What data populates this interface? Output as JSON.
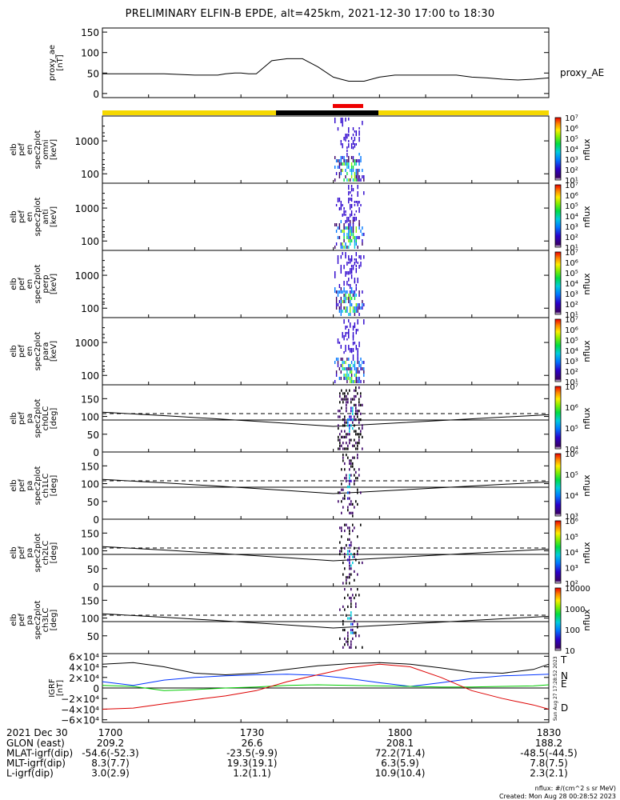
{
  "title": "PRELIMINARY ELFIN-B EPDE, alt=425km, 2021-12-30 17:00 to 18:30",
  "colors": {
    "yellow": "#f5d800",
    "black": "#000000",
    "red": "#ee0000",
    "gsm_T": "#000000",
    "gsm_N": "#0033ff",
    "gsm_E": "#00cc00",
    "gsm_D": "#dd0000"
  },
  "chart_data": [
    {
      "type": "line",
      "panel": "proxy_ae",
      "ylabel": [
        "proxy_ae",
        "[nT]"
      ],
      "legend": "proxy_AE",
      "yticks": [
        "150",
        "100",
        "50",
        "0"
      ],
      "ylim": [
        -10,
        160
      ],
      "x_minutes": [
        0,
        20,
        40,
        60,
        75,
        80,
        86,
        90,
        95,
        100,
        110,
        120,
        130,
        140,
        150,
        155,
        160,
        170,
        180,
        190,
        200,
        210,
        220,
        230,
        240,
        250,
        260,
        270,
        280,
        290
      ],
      "values": [
        48,
        48,
        48,
        45,
        45,
        48,
        50,
        50,
        48,
        48,
        80,
        85,
        85,
        65,
        40,
        35,
        30,
        30,
        40,
        45,
        45,
        45,
        45,
        45,
        40,
        38,
        35,
        33,
        35,
        38
      ]
    },
    {
      "type": "heatmap",
      "panel": "spec_omni",
      "ylabel": [
        "elb",
        "pef",
        "en",
        "spec2plot",
        "omni",
        "[keV]"
      ],
      "yticks": [
        "1000",
        "100"
      ],
      "colorbar_label": "nflux",
      "colorbar_ticks": [
        "10⁷",
        "10⁶",
        "10⁵",
        "10⁴",
        "10³",
        "10²",
        "10¹"
      ]
    },
    {
      "type": "heatmap",
      "panel": "spec_anti",
      "ylabel": [
        "elb",
        "pef",
        "en",
        "spec2plot",
        "anti",
        "[keV]"
      ],
      "yticks": [
        "1000",
        "100"
      ],
      "colorbar_label": "nflux",
      "colorbar_ticks": [
        "10⁷",
        "10⁶",
        "10⁵",
        "10⁴",
        "10³",
        "10²",
        "10¹"
      ]
    },
    {
      "type": "heatmap",
      "panel": "spec_perp",
      "ylabel": [
        "elb",
        "pef",
        "en",
        "spec2plot",
        "perp",
        "[keV]"
      ],
      "yticks": [
        "1000",
        "100"
      ],
      "colorbar_label": "nflux",
      "colorbar_ticks": [
        "10⁷",
        "10⁶",
        "10⁵",
        "10⁴",
        "10³",
        "10²",
        "10¹"
      ]
    },
    {
      "type": "heatmap",
      "panel": "spec_para",
      "ylabel": [
        "elb",
        "pef",
        "en",
        "spec2plot",
        "para",
        "[keV]"
      ],
      "yticks": [
        "1000",
        "100"
      ],
      "colorbar_label": "nflux",
      "colorbar_ticks": [
        "10⁷",
        "10⁶",
        "10⁵",
        "10⁴",
        "10³",
        "10²",
        "10¹"
      ]
    },
    {
      "type": "heatmap",
      "panel": "pa_ch0",
      "ylabel": [
        "elb",
        "pef",
        "pa",
        "spec2plot",
        "ch0LC",
        "[deg]"
      ],
      "yticks": [
        "150",
        "100",
        "50",
        "0"
      ],
      "colorbar_label": "nflux",
      "colorbar_ticks": [
        "10⁷",
        "10⁶",
        "10⁵",
        "10⁴"
      ]
    },
    {
      "type": "heatmap",
      "panel": "pa_ch1",
      "ylabel": [
        "elb",
        "pef",
        "pa",
        "spec2plot",
        "ch1LC",
        "[deg]"
      ],
      "yticks": [
        "150",
        "100",
        "50",
        "0"
      ],
      "colorbar_label": "nflux",
      "colorbar_ticks": [
        "10⁶",
        "10⁵",
        "10⁴",
        "10³"
      ]
    },
    {
      "type": "heatmap",
      "panel": "pa_ch2",
      "ylabel": [
        "elb",
        "pef",
        "pa",
        "spec2plot",
        "ch2LC",
        "[deg]"
      ],
      "yticks": [
        "150",
        "100",
        "50",
        "0"
      ],
      "colorbar_label": "nflux",
      "colorbar_ticks": [
        "10⁶",
        "10⁵",
        "10⁴",
        "10³",
        "10²"
      ]
    },
    {
      "type": "heatmap",
      "panel": "pa_ch3",
      "ylabel": [
        "elb",
        "pef",
        "pa",
        "spec2plot",
        "ch3LC",
        "[deg]"
      ],
      "yticks": [
        "150",
        "100",
        "50"
      ],
      "colorbar_label": "nflux",
      "colorbar_ticks": [
        "10000",
        "1000",
        "100",
        "10"
      ]
    },
    {
      "type": "line",
      "panel": "igrf",
      "ylabel": [
        "IGRF",
        "[nT]"
      ],
      "yticks": [
        "6×10⁴",
        "4×10⁴",
        "2×10⁴",
        "0",
        "−2×10⁴",
        "−4×10⁴",
        "−6×10⁴"
      ],
      "ylim": [
        -65000,
        65000
      ],
      "x_minutes": [
        0,
        20,
        40,
        60,
        80,
        100,
        120,
        140,
        160,
        180,
        200,
        220,
        240,
        260,
        280,
        290
      ],
      "series": [
        {
          "name": "T",
          "values": [
            45000,
            48000,
            40000,
            28000,
            25000,
            28000,
            35000,
            42000,
            46000,
            48000,
            45000,
            38000,
            30000,
            28000,
            35000,
            45000
          ]
        },
        {
          "name": "N",
          "values": [
            12000,
            5000,
            15000,
            20000,
            23000,
            25000,
            26000,
            24000,
            18000,
            10000,
            3000,
            10000,
            18000,
            23000,
            25000,
            26000
          ]
        },
        {
          "name": "E",
          "values": [
            5000,
            3000,
            -5000,
            -3000,
            0,
            2000,
            5000,
            6000,
            5000,
            4000,
            3000,
            2000,
            2000,
            3000,
            4000,
            6000
          ]
        },
        {
          "name": "D",
          "values": [
            -40000,
            -38000,
            -30000,
            -22000,
            -15000,
            -5000,
            12000,
            25000,
            38000,
            45000,
            40000,
            20000,
            -5000,
            -20000,
            -32000,
            -40000
          ]
        }
      ],
      "side_date": "Sun Aug 27 17:28:52 2023"
    }
  ],
  "time_axis": {
    "date": "2021 Dec 30",
    "ticks": [
      {
        "label": "1700"
      },
      {
        "label": "1730"
      },
      {
        "label": "1800"
      },
      {
        "label": "1830"
      }
    ],
    "rows": [
      {
        "label": "GLON (east)",
        "values": [
          "209.2",
          "26.6",
          "208.1",
          "188.2"
        ]
      },
      {
        "label": "MLAT-igrf(dip)",
        "values": [
          "-54.6(-52.3)",
          "-23.5(-9.9)",
          "72.2(71.4)",
          "-48.5(-44.5)"
        ]
      },
      {
        "label": "MLT-igrf(dip)",
        "values": [
          "8.3(7.7)",
          "19.3(19.1)",
          "6.3(5.9)",
          "7.8(7.5)"
        ]
      },
      {
        "label": "L-igrf(dip)",
        "values": [
          "3.0(2.9)",
          "1.2(1.1)",
          "10.9(10.4)",
          "2.3(2.1)"
        ]
      }
    ]
  },
  "footer": {
    "units": "nflux: #/(cm^2 s sr MeV)",
    "created": "Created: Mon Aug 28 00:28:52 2023"
  }
}
